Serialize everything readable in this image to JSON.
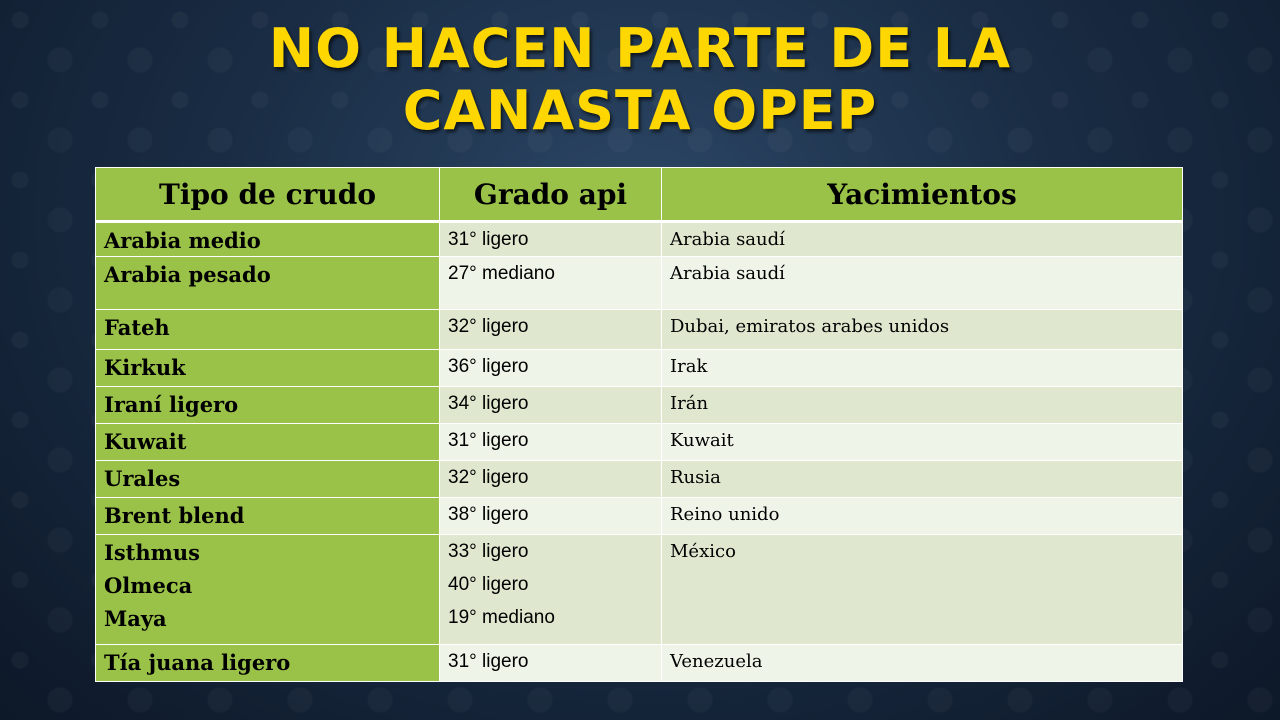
{
  "title": {
    "line1": "NO HACEN PARTE DE LA",
    "line2": "CANASTA OPEP"
  },
  "table": {
    "headers": [
      "Tipo de crudo",
      "Grado api",
      "Yacimientos"
    ],
    "rows": [
      {
        "tipo": [
          "Arabia medio"
        ],
        "grado": [
          "31° ligero"
        ],
        "yacimiento": "Arabia saudí"
      },
      {
        "tipo": [
          "Arabia pesado"
        ],
        "grado": [
          "27° mediano"
        ],
        "yacimiento": "Arabia saudí"
      },
      {
        "tipo": [
          "Fateh"
        ],
        "grado": [
          "32° ligero"
        ],
        "yacimiento": "Dubai, emiratos arabes unidos"
      },
      {
        "tipo": [
          "Kirkuk"
        ],
        "grado": [
          "36° ligero"
        ],
        "yacimiento": "Irak"
      },
      {
        "tipo": [
          "Iraní ligero"
        ],
        "grado": [
          "34° ligero"
        ],
        "yacimiento": "Irán"
      },
      {
        "tipo": [
          "Kuwait"
        ],
        "grado": [
          "31° ligero"
        ],
        "yacimiento": "Kuwait"
      },
      {
        "tipo": [
          "Urales"
        ],
        "grado": [
          "32° ligero"
        ],
        "yacimiento": "Rusia"
      },
      {
        "tipo": [
          "Brent blend"
        ],
        "grado": [
          "38° ligero"
        ],
        "yacimiento": "Reino unido"
      },
      {
        "tipo": [
          "Isthmus",
          "Olmeca",
          "Maya"
        ],
        "grado": [
          "33° ligero",
          "40° ligero",
          "19° mediano"
        ],
        "yacimiento": "México"
      },
      {
        "tipo": [
          "Tía juana ligero"
        ],
        "grado": [
          "31° ligero"
        ],
        "yacimiento": "Venezuela"
      }
    ]
  }
}
